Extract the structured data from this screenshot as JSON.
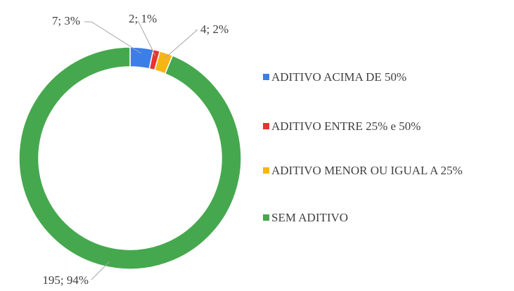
{
  "chart_data": {
    "type": "donut",
    "categories": [
      "ADITIVO ACIMA DE 50%",
      "ADITIVO ENTRE 25% e 50%",
      "ADITIVO MENOR OU IGUAL A 25%",
      "SEM ADITIVO"
    ],
    "values": [
      7,
      2,
      4,
      195
    ],
    "value_labels": [
      "7; 3%",
      "2; 1%",
      "4; 2%",
      "195; 94%"
    ],
    "colors": [
      "#3c7ee8",
      "#e8342f",
      "#f7b515",
      "#46a84e"
    ],
    "legend": "right"
  }
}
